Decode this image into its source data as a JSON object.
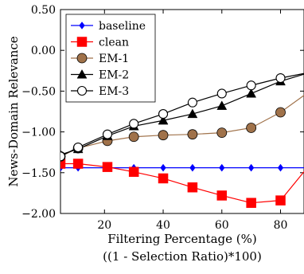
{
  "chart_data": {
    "type": "line",
    "title": "",
    "xlabel": "Filtering Percentage (%)",
    "xlabel_line2": "((1 - Selection Ratio)*100)",
    "ylabel": "News-Domain Relevance",
    "xlim": [
      5,
      88
    ],
    "ylim": [
      -2.0,
      0.5
    ],
    "xticks": [
      20,
      40,
      60,
      80
    ],
    "yticks": [
      0.5,
      0.0,
      -0.5,
      -1.0,
      -1.5,
      -2.0
    ],
    "ytick_labels": [
      "0.50",
      "0.00",
      "−0.50",
      "−1.00",
      "−1.50",
      "−2.00"
    ],
    "x": [
      5,
      11,
      21,
      30,
      40,
      50,
      60,
      70,
      80,
      90
    ],
    "legend_position": "top-left",
    "grid": false,
    "series": [
      {
        "name": "baseline",
        "color": "#0000ff",
        "marker": "diamond",
        "values": [
          -1.44,
          -1.44,
          -1.44,
          -1.44,
          -1.44,
          -1.44,
          -1.44,
          -1.44,
          -1.44,
          -1.44
        ]
      },
      {
        "name": "clean",
        "color": "#ff0000",
        "marker": "square",
        "values": [
          -1.39,
          -1.39,
          -1.43,
          -1.49,
          -1.57,
          -1.68,
          -1.78,
          -1.87,
          -1.84,
          -1.4
        ]
      },
      {
        "name": "EM-1",
        "color": "#a0724a",
        "marker": "circle-filled",
        "values": [
          -1.3,
          -1.2,
          -1.11,
          -1.06,
          -1.04,
          -1.03,
          -1.01,
          -0.95,
          -0.76,
          -0.5
        ]
      },
      {
        "name": "EM-2",
        "color": "#000000",
        "marker": "triangle",
        "values": [
          -1.28,
          -1.21,
          -1.05,
          -0.93,
          -0.86,
          -0.78,
          -0.68,
          -0.53,
          -0.38,
          -0.27
        ]
      },
      {
        "name": "EM-3",
        "color": "#000000",
        "marker": "circle-open",
        "values": [
          -1.3,
          -1.19,
          -1.03,
          -0.9,
          -0.78,
          -0.64,
          -0.53,
          -0.43,
          -0.34,
          -0.27
        ]
      }
    ]
  }
}
